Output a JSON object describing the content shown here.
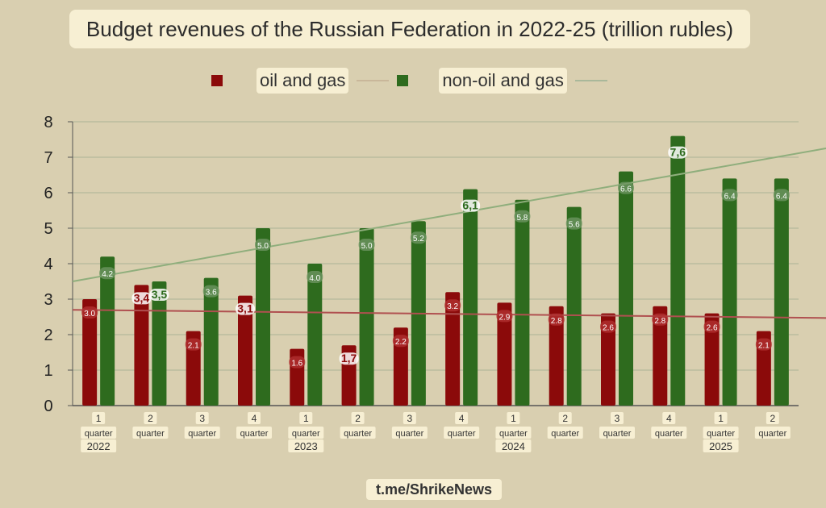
{
  "source": "t.me/ShrikeNews",
  "chart_data": {
    "type": "bar",
    "title": "Budget revenues of the Russian Federation in 2022-25 (trillion rubles)",
    "legend_position": "top",
    "grid": true,
    "ylim": [
      0,
      8
    ],
    "yticks": [
      "0",
      "1",
      "2",
      "3",
      "4",
      "5",
      "6",
      "7",
      "8"
    ],
    "categories": [
      "1",
      "2",
      "3",
      "4",
      "1",
      "2",
      "3",
      "4",
      "1",
      "2",
      "3",
      "4",
      "1",
      "2"
    ],
    "category_word": "quarter",
    "years": [
      {
        "label": "2022",
        "start": 0
      },
      {
        "label": "2023",
        "start": 4
      },
      {
        "label": "2024",
        "start": 8
      },
      {
        "label": "2025",
        "start": 12
      }
    ],
    "series": [
      {
        "name": "oil and gas",
        "color": "#8b0a0a",
        "values": [
          3.0,
          3.4,
          2.1,
          3.1,
          1.6,
          1.7,
          2.2,
          3.2,
          2.9,
          2.8,
          2.6,
          2.8,
          2.6,
          2.1
        ],
        "labels": [
          "3.0",
          "3,4",
          "2.1",
          "3,1",
          "1.6",
          "1,7",
          "2.2",
          "3.2",
          "2.9",
          "2.8",
          "2.6",
          "2.8",
          "2.6",
          "2.1"
        ],
        "trend": [
          2.7,
          2.47
        ],
        "trend_color": "#b05050"
      },
      {
        "name": "non-oil and gas",
        "color": "#2e6b1e",
        "values": [
          4.2,
          3.5,
          3.6,
          5.0,
          4.0,
          5.0,
          5.2,
          6.1,
          5.8,
          5.6,
          6.6,
          7.6,
          6.4,
          6.4
        ],
        "labels": [
          "4.2",
          "3,5",
          "3.6",
          "5.0",
          "4.0",
          "5.0",
          "5.2",
          "6,1",
          "5.8",
          "5.6",
          "6.6",
          "7,6",
          "6.4",
          "6.4"
        ],
        "trend": [
          3.5,
          7.25
        ],
        "trend_color": "#8fae7c"
      }
    ]
  }
}
